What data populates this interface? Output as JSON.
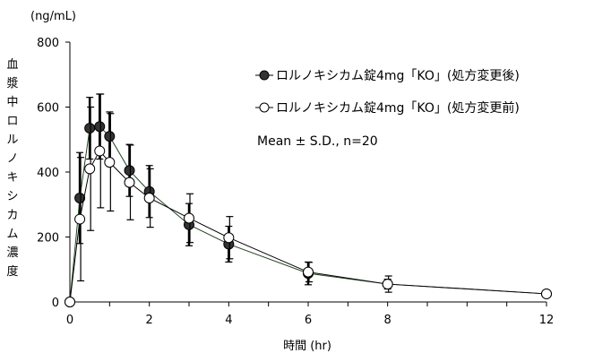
{
  "chart_data": {
    "type": "line",
    "title": "",
    "unit_label": "(ng/mL)",
    "ylabel": "血漿中ロルノキシカム濃度",
    "xlabel": "時間 (hr)",
    "xlim": [
      0,
      12
    ],
    "ylim": [
      0,
      800
    ],
    "xticks": [
      0,
      2,
      4,
      6,
      8,
      12
    ],
    "xminor": [
      0,
      1,
      2,
      3,
      4,
      5,
      6,
      7,
      8,
      9,
      10,
      11,
      12
    ],
    "yticks": [
      0,
      200,
      400,
      600,
      800
    ],
    "grid": false,
    "legend_position": "top-right",
    "annotation": "Mean ± S.D., n=20",
    "series": [
      {
        "name": "ロルノキシカム錠4mg「KO」(処方変更後)",
        "marker": "filled",
        "x": [
          0,
          0.25,
          0.5,
          0.75,
          1,
          1.5,
          2,
          3,
          4,
          6,
          8,
          12
        ],
        "y": [
          0,
          320,
          535,
          540,
          510,
          405,
          340,
          238,
          178,
          88,
          55,
          25
        ],
        "sd": [
          0,
          140,
          95,
          100,
          75,
          80,
          80,
          65,
          55,
          35,
          15,
          8
        ]
      },
      {
        "name": "ロルノキシカム錠4mg「KO」(処方変更前)",
        "marker": "open",
        "x": [
          0,
          0.25,
          0.5,
          0.75,
          1,
          1.5,
          2,
          3,
          4,
          6,
          8,
          12
        ],
        "y": [
          0,
          255,
          410,
          465,
          430,
          368,
          320,
          258,
          198,
          92,
          55,
          25
        ],
        "sd": [
          0,
          190,
          190,
          175,
          150,
          115,
          90,
          75,
          65,
          30,
          25,
          8
        ]
      }
    ]
  }
}
